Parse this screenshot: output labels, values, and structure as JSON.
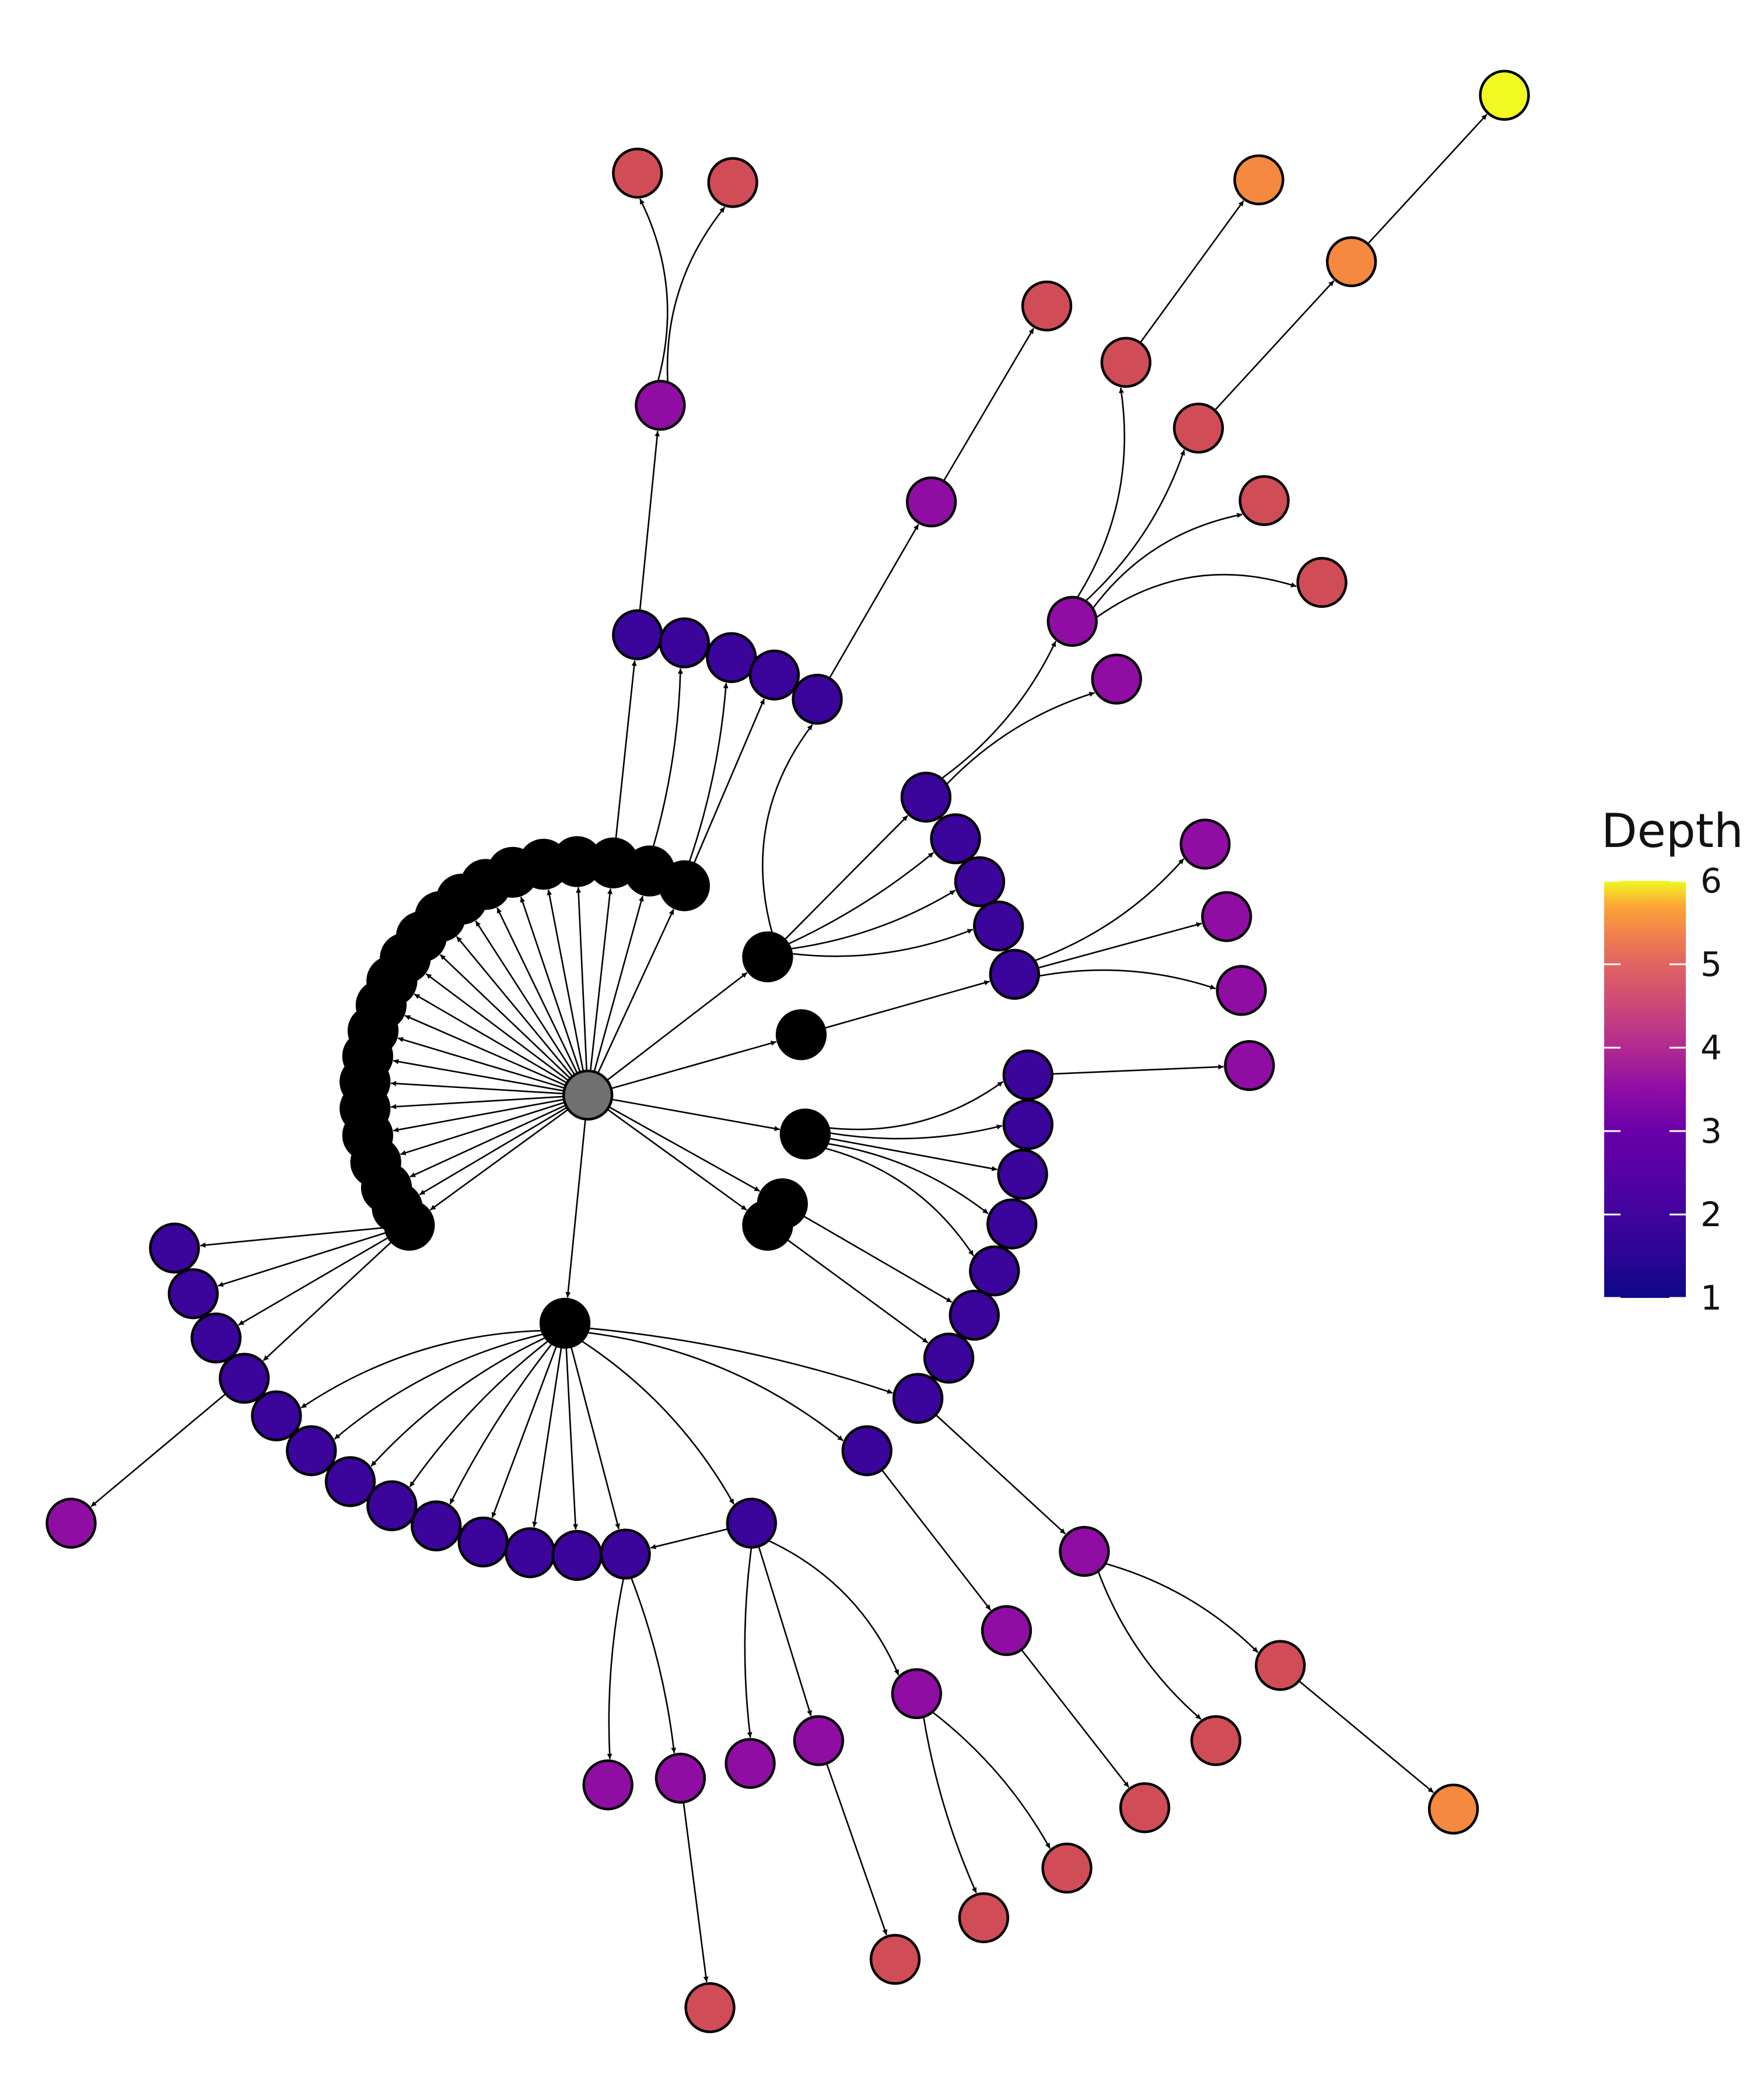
{
  "legend": {
    "title": "Depth",
    "ticks": [
      "1",
      "2",
      "3",
      "4",
      "5",
      "6"
    ],
    "min": 1,
    "max": 6
  },
  "depth_colors": {
    "1": "#0d0887",
    "2": "#3b049a",
    "3": "#900da4",
    "4": "#d04d58",
    "5": "#f4893f",
    "6": "#f0f921"
  },
  "root_color": "#707070",
  "node_fill_depth1": "#000000",
  "edge_color": "#000000",
  "chart_data": {
    "type": "network",
    "node_count": 118,
    "encoding": "node fill color = depth from root (plasma scale)"
  }
}
